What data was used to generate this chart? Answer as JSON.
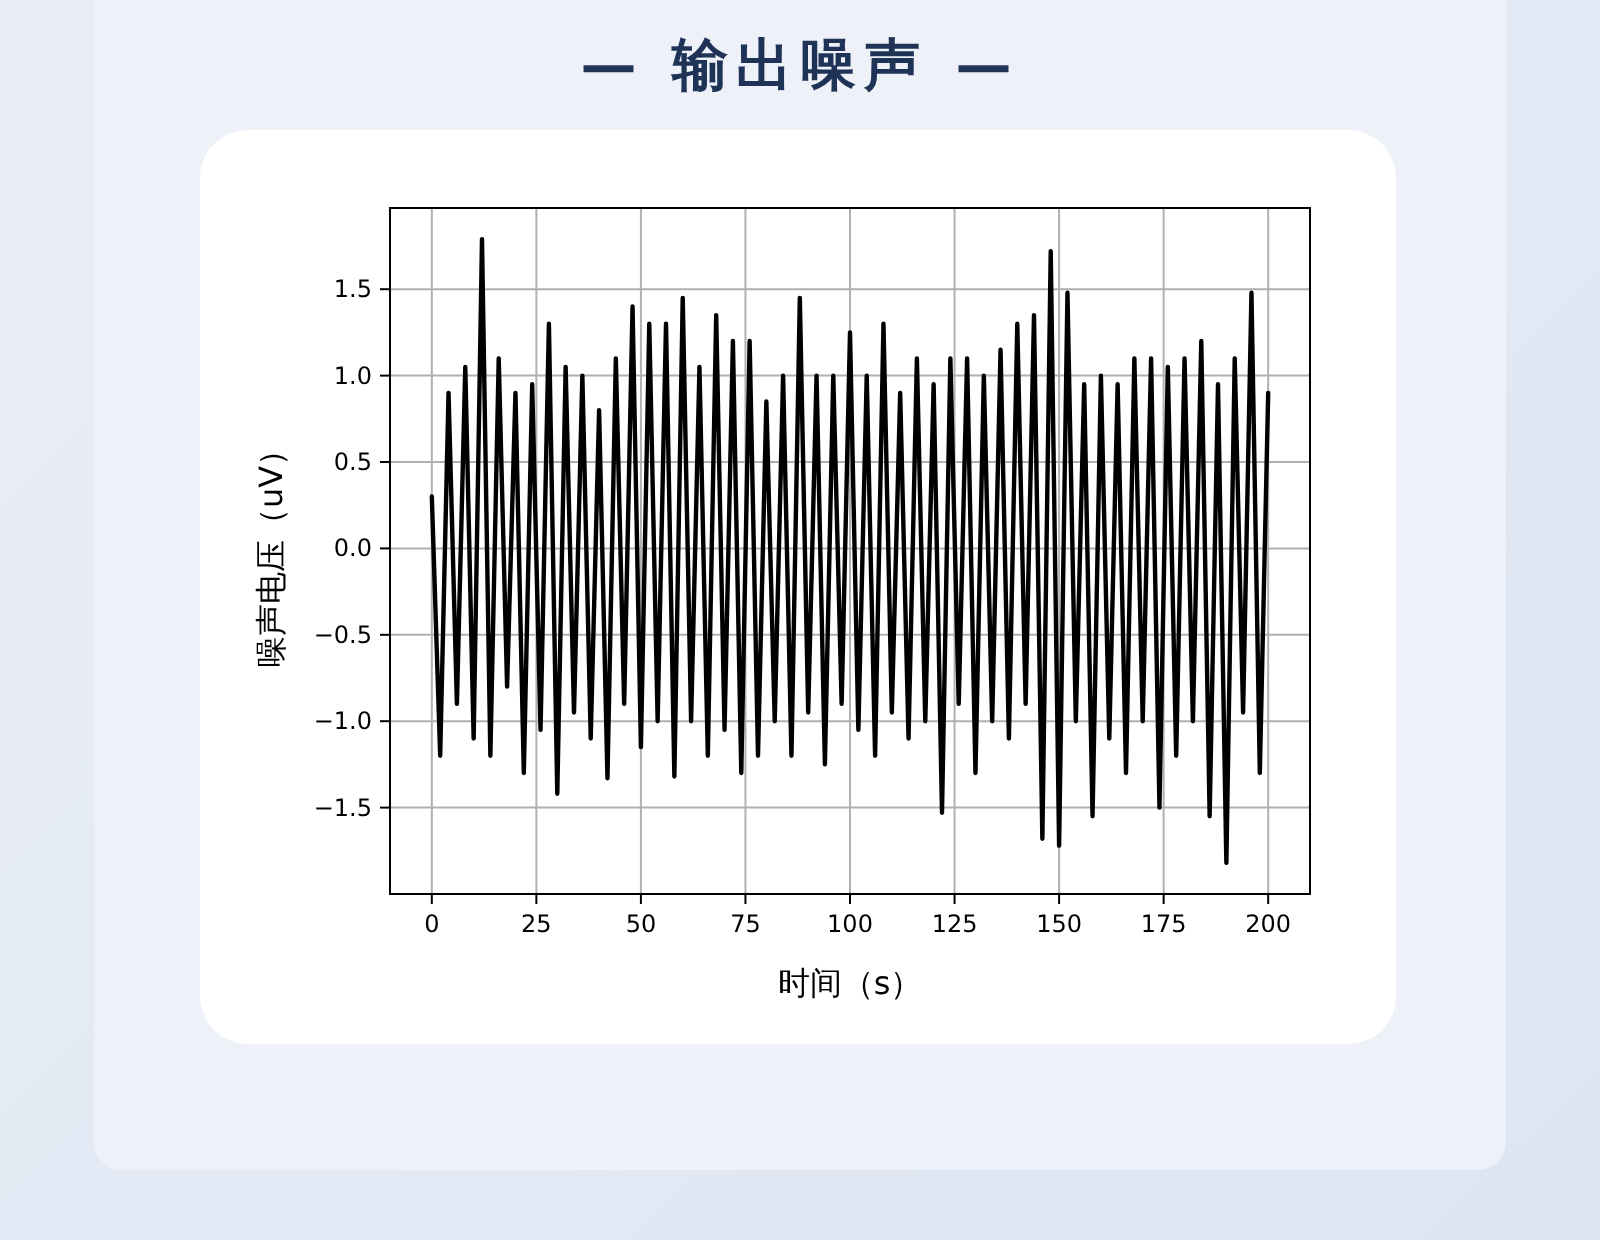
{
  "chart_data": {
    "type": "line",
    "title": "— 输出噪声 —",
    "xlabel": "时间（s）",
    "ylabel": "噪声电压（uV）",
    "x": [
      0,
      2,
      4,
      6,
      8,
      10,
      12,
      14,
      16,
      18,
      20,
      22,
      24,
      26,
      28,
      30,
      32,
      34,
      36,
      38,
      40,
      42,
      44,
      46,
      48,
      50,
      52,
      54,
      56,
      58,
      60,
      62,
      64,
      66,
      68,
      70,
      72,
      74,
      76,
      78,
      80,
      82,
      84,
      86,
      88,
      90,
      92,
      94,
      96,
      98,
      100,
      102,
      104,
      106,
      108,
      110,
      112,
      114,
      116,
      118,
      120,
      122,
      124,
      126,
      128,
      130,
      132,
      134,
      136,
      138,
      140,
      142,
      144,
      146,
      148,
      150,
      152,
      154,
      156,
      158,
      160,
      162,
      164,
      166,
      168,
      170,
      172,
      174,
      176,
      178,
      180,
      182,
      184,
      186,
      188,
      190,
      192,
      194,
      196,
      198,
      200
    ],
    "series": [
      {
        "color": "#000000",
        "values": [
          0.3,
          -1.2,
          0.9,
          -0.9,
          1.05,
          -1.1,
          1.79,
          -1.2,
          1.1,
          -0.8,
          0.9,
          -1.3,
          0.95,
          -1.05,
          1.3,
          -1.42,
          1.05,
          -0.95,
          1.0,
          -1.1,
          0.8,
          -1.33,
          1.1,
          -0.9,
          1.4,
          -1.15,
          1.3,
          -1.0,
          1.3,
          -1.32,
          1.45,
          -1.0,
          1.05,
          -1.2,
          1.35,
          -1.05,
          1.2,
          -1.3,
          1.2,
          -1.2,
          0.85,
          -1.0,
          1.0,
          -1.2,
          1.45,
          -0.95,
          1.0,
          -1.25,
          1.0,
          -0.9,
          1.25,
          -1.05,
          1.0,
          -1.2,
          1.3,
          -0.95,
          0.9,
          -1.1,
          1.1,
          -1.0,
          0.95,
          -1.53,
          1.1,
          -0.9,
          1.1,
          -1.3,
          1.0,
          -1.0,
          1.15,
          -1.1,
          1.3,
          -0.9,
          1.35,
          -1.68,
          1.72,
          -1.72,
          1.48,
          -1.0,
          0.95,
          -1.55,
          1.0,
          -1.1,
          0.95,
          -1.3,
          1.1,
          -1.0,
          1.1,
          -1.5,
          1.05,
          -1.2,
          1.1,
          -1.0,
          1.2,
          -1.55,
          0.95,
          -1.82,
          1.1,
          -0.95,
          1.48,
          -1.3,
          0.9
        ]
      }
    ],
    "xlim": [
      -10,
      210
    ],
    "ylim": [
      -2.0,
      1.97
    ],
    "xticks": [
      0,
      25,
      50,
      75,
      100,
      125,
      150,
      175,
      200
    ],
    "yticks": [
      {
        "value": -1.5,
        "label": "−1.5"
      },
      {
        "value": -1.0,
        "label": "−1.0"
      },
      {
        "value": -0.5,
        "label": "−0.5"
      },
      {
        "value": 0,
        "label": "0.0"
      },
      0.5,
      {
        "value": 1.0,
        "label": "1.0"
      },
      1.5
    ],
    "grid": true,
    "marker": "none",
    "line_style": "solid"
  }
}
